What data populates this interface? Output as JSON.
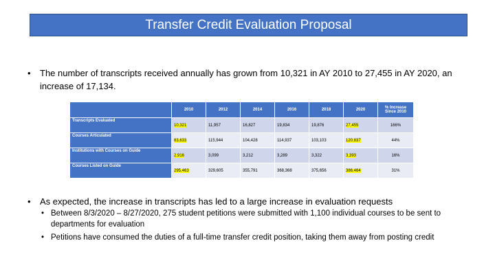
{
  "slide": {
    "title": "Transfer Credit Evaluation Proposal",
    "bullet1": "The number of transcripts received annually has grown from 10,321 in AY 2010 to 27,455 in AY 2020, an increase of 17,134.",
    "bullet2": "As expected, the increase in transcripts has led to a large increase in evaluation requests",
    "sub1": "Between 8/3/2020 – 8/27/2020, 275 student petitions were submitted with 1,100 individual courses to be sent to departments for evaluation",
    "sub2": "Petitions have consumed the duties of a full-time transfer credit position, taking them away from posting credit",
    "bullet_char": "•"
  },
  "table": {
    "headers": [
      "",
      "2010",
      "2012",
      "2014",
      "2016",
      "2018",
      "2020",
      "% Increase Since 2010"
    ],
    "rows": [
      {
        "label": "Transcripts Evaluated",
        "values": [
          "10,321",
          "11,957",
          "16,827",
          "19,834",
          "19,876",
          "27,455"
        ],
        "pct": "166%"
      },
      {
        "label": "Courses Articulated",
        "values": [
          "83,633",
          "115,944",
          "104,428",
          "114,937",
          "103,103",
          "120,837"
        ],
        "pct": "44%"
      },
      {
        "label": "Institutions with Courses on Guide",
        "values": [
          "2,916",
          "3,099",
          "3,212",
          "3,289",
          "3,322",
          "3,393"
        ],
        "pct": "16%"
      },
      {
        "label": "Courses Listed on Guide",
        "values": [
          "295,463",
          "329,605",
          "355,791",
          "368,368",
          "375,656",
          "386,464"
        ],
        "pct": "31%"
      }
    ],
    "highlight_color": "#ffff00",
    "header_color": "#4472c4"
  }
}
